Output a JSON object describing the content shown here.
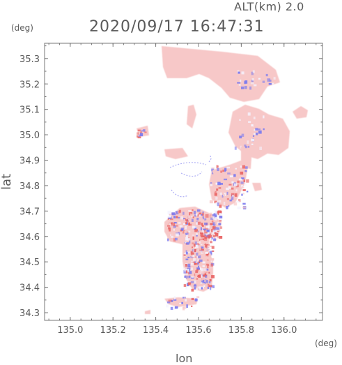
{
  "header": {
    "alt_label": "ALT(km)  2.0",
    "timestamp": "2020/09/17 16:47:31"
  },
  "axes": {
    "y_unit": "(deg)",
    "x_unit": "(deg)",
    "y_label": "lat",
    "x_label": "lon"
  },
  "colors": {
    "frame": "#777777",
    "tick_text": "#5a5a5a",
    "echo_base": "#f7c8c8",
    "echo_red": "#e86060",
    "echo_blue": "#7a7aef",
    "echo_white": "#f4f4ff"
  },
  "map": {
    "lon_range": [
      134.88,
      136.18
    ],
    "lat_range": [
      34.27,
      35.36
    ],
    "lon_ticks": [
      "135.0",
      "135.2",
      "135.4",
      "135.6",
      "135.8",
      "136.0"
    ],
    "lat_ticks": [
      "34.3",
      "34.4",
      "34.5",
      "34.6",
      "34.7",
      "34.8",
      "34.9",
      "35.0",
      "35.1",
      "35.2",
      "35.3"
    ]
  }
}
